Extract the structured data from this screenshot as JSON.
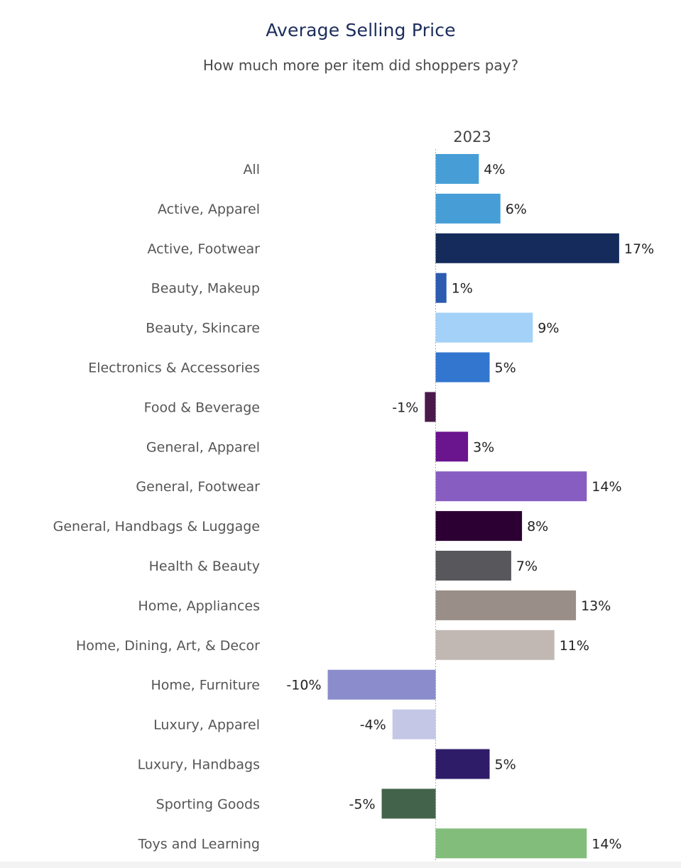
{
  "header": {
    "title": "Average Selling Price",
    "subtitle": "How much more per item did shoppers pay?"
  },
  "chart_data": {
    "type": "bar",
    "orientation": "horizontal",
    "column_header": "2023",
    "categories": [
      "All",
      "Active, Apparel",
      "Active, Footwear",
      "Beauty, Makeup",
      "Beauty, Skincare",
      "Electronics & Accessories",
      "Food & Beverage",
      "General, Apparel",
      "General, Footwear",
      "General, Handbags & Luggage",
      "Health & Beauty",
      "Home, Appliances",
      "Home, Dining, Art, & Decor",
      "Home, Furniture",
      "Luxury, Apparel",
      "Luxury, Handbags",
      "Sporting Goods",
      "Toys and Learning"
    ],
    "values": [
      4,
      6,
      17,
      1,
      9,
      5,
      -1,
      3,
      14,
      8,
      7,
      13,
      11,
      -10,
      -4,
      5,
      -5,
      14
    ],
    "value_labels": [
      "4%",
      "6%",
      "17%",
      "1%",
      "9%",
      "5%",
      "-1%",
      "3%",
      "14%",
      "8%",
      "7%",
      "13%",
      "11%",
      "-10%",
      "-4%",
      "5%",
      "-5%",
      "14%"
    ],
    "colors": [
      "#479ed6",
      "#479ed6",
      "#142b5c",
      "#2c5bb0",
      "#a3d1f7",
      "#3276cf",
      "#4a1a4a",
      "#6a148e",
      "#875dc1",
      "#2c0033",
      "#58575c",
      "#9a8e88",
      "#c1b7b3",
      "#8a8ccb",
      "#c5c7e6",
      "#2e1c68",
      "#43644a",
      "#82bd7b"
    ],
    "unit": "%",
    "zero_line": "dotted",
    "grid": false,
    "legend": "none"
  }
}
